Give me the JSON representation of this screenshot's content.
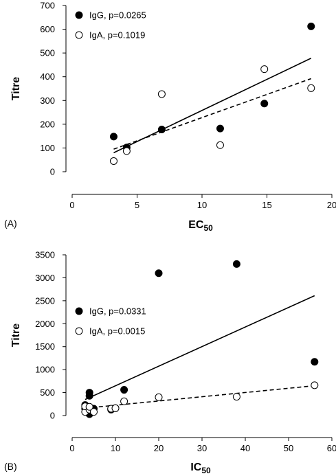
{
  "chart_data": [
    {
      "type": "scatter",
      "panel_label": "(A)",
      "xlabel": "EC",
      "xlabel_sub": "50",
      "ylabel": "Titre",
      "xlim": [
        0,
        20
      ],
      "ylim": [
        0,
        700
      ],
      "xticks": [
        0,
        5,
        10,
        15,
        20
      ],
      "yticks": [
        0,
        100,
        200,
        300,
        400,
        500,
        600,
        700
      ],
      "legend_position": "top-left",
      "series": [
        {
          "name": "IgG, p=0.0265",
          "marker": "filled-circle",
          "line_style": "solid",
          "points": [
            [
              3.2,
              148
            ],
            [
              4.2,
              102
            ],
            [
              6.9,
              178
            ],
            [
              11.4,
              182
            ],
            [
              14.8,
              287
            ],
            [
              18.4,
              612
            ]
          ],
          "fit": [
            [
              3.2,
              80
            ],
            [
              18.4,
              478
            ]
          ]
        },
        {
          "name": "IgA, p=0.1019",
          "marker": "open-circle",
          "line_style": "dashed",
          "points": [
            [
              3.2,
              45
            ],
            [
              4.2,
              87
            ],
            [
              6.9,
              327
            ],
            [
              11.4,
              112
            ],
            [
              14.8,
              432
            ],
            [
              18.4,
              352
            ]
          ],
          "fit": [
            [
              3.2,
              95
            ],
            [
              18.4,
              392
            ]
          ]
        }
      ]
    },
    {
      "type": "scatter",
      "panel_label": "(B)",
      "xlabel": "IC",
      "xlabel_sub": "50",
      "ylabel": "Titre",
      "xlim": [
        0,
        60
      ],
      "ylim": [
        0,
        3500
      ],
      "xticks": [
        0,
        10,
        20,
        30,
        40,
        50,
        60
      ],
      "yticks": [
        0,
        500,
        1000,
        1500,
        2000,
        2500,
        3000,
        3500
      ],
      "legend_position": "middle-left",
      "series": [
        {
          "name": "IgG, p=0.0331",
          "marker": "filled-circle",
          "line_style": "solid",
          "points": [
            [
              3,
              150
            ],
            [
              3,
              230
            ],
            [
              4,
              430
            ],
            [
              4,
              500
            ],
            [
              4,
              30
            ],
            [
              5,
              150
            ],
            [
              9,
              130
            ],
            [
              10,
              160
            ],
            [
              12,
              560
            ],
            [
              20,
              3100
            ],
            [
              38,
              3300
            ],
            [
              56,
              1170
            ]
          ],
          "fit": [
            [
              3,
              350
            ],
            [
              56,
              2610
            ]
          ]
        },
        {
          "name": "IgA, p=0.0015",
          "marker": "open-circle",
          "line_style": "dashed",
          "points": [
            [
              3,
              80
            ],
            [
              3,
              200
            ],
            [
              4,
              130
            ],
            [
              4,
              190
            ],
            [
              5,
              80
            ],
            [
              9,
              150
            ],
            [
              10,
              160
            ],
            [
              12,
              310
            ],
            [
              20,
              400
            ],
            [
              38,
              410
            ],
            [
              56,
              660
            ]
          ],
          "fit": [
            [
              3,
              160
            ],
            [
              56,
              650
            ]
          ]
        }
      ]
    }
  ]
}
